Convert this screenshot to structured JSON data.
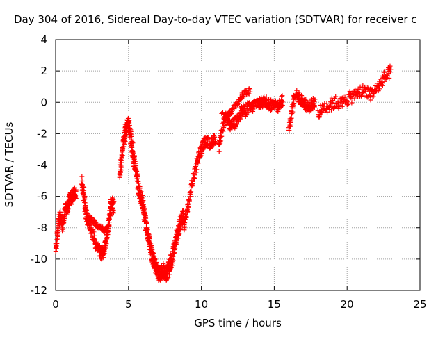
{
  "chart_data": {
    "type": "scatter",
    "title": "Day 304 of 2016, Sidereal Day-to-day VTEC variation (SDTVAR) for receiver c",
    "xlabel": "GPS time / hours",
    "ylabel": "SDTVAR / TECUs",
    "xlim": [
      0,
      25
    ],
    "ylim": [
      -12,
      4
    ],
    "x_ticks": [
      0,
      5,
      10,
      15,
      20,
      25
    ],
    "y_ticks": [
      -12,
      -10,
      -8,
      -6,
      -4,
      -2,
      0,
      2,
      4
    ],
    "x_tick_labels": [
      "0",
      "5",
      "10",
      "15",
      "20",
      "25"
    ],
    "y_tick_labels": [
      "-12",
      "-10",
      "-8",
      "-6",
      "-4",
      "-2",
      "0",
      "2",
      "4"
    ],
    "grid": true,
    "marker": "plus",
    "series": [
      {
        "color": "#ff0000",
        "segments": [
          {
            "x": [
              0.0,
              0.1,
              0.2,
              0.3,
              0.4,
              0.5,
              0.6,
              0.7,
              0.8,
              0.9,
              1.0,
              1.1,
              1.2,
              1.3,
              1.4
            ],
            "y": [
              -9.5,
              -8.6,
              -7.8,
              -7.2,
              -7.6,
              -8.2,
              -7.3,
              -6.6,
              -6.9,
              -6.4,
              -6.0,
              -6.3,
              -5.9,
              -5.7,
              -5.9
            ],
            "spread": 0.6
          },
          {
            "x": [
              1.8,
              1.9,
              2.0,
              2.1,
              2.2,
              2.4,
              2.6,
              2.8,
              3.0,
              3.1,
              3.2,
              3.3,
              3.4,
              3.5,
              3.6,
              3.7,
              3.8,
              3.9,
              4.0
            ],
            "y": [
              -5.0,
              -5.6,
              -6.4,
              -7.2,
              -7.6,
              -8.0,
              -8.6,
              -9.2,
              -9.5,
              -9.6,
              -9.7,
              -9.5,
              -9.2,
              -8.5,
              -8.0,
              -7.2,
              -6.6,
              -6.4,
              -6.8
            ],
            "spread": 0.8
          },
          {
            "x": [
              2.2,
              2.5,
              2.8,
              3.1,
              3.4,
              3.7
            ],
            "y": [
              -7.3,
              -7.5,
              -7.8,
              -8.0,
              -8.2,
              -7.9
            ],
            "spread": 0.3
          },
          {
            "x": [
              4.4,
              4.5,
              4.6,
              4.7,
              4.8,
              4.9,
              5.0,
              5.1,
              5.2,
              5.3,
              5.4,
              5.5,
              5.6,
              5.7,
              5.8,
              5.9,
              6.0,
              6.1,
              6.2,
              6.3,
              6.4,
              6.5,
              6.6,
              6.7,
              6.8,
              6.9,
              7.0,
              7.1,
              7.2,
              7.3,
              7.4,
              7.5,
              7.6,
              7.7,
              7.8,
              7.9,
              8.0,
              8.1,
              8.2,
              8.3,
              8.4,
              8.5,
              8.6,
              8.7,
              8.8
            ],
            "y": [
              -4.6,
              -3.8,
              -3.0,
              -2.4,
              -1.8,
              -1.5,
              -1.4,
              -1.9,
              -2.5,
              -3.2,
              -3.8,
              -4.4,
              -5.0,
              -5.5,
              -5.9,
              -6.2,
              -6.6,
              -7.2,
              -7.8,
              -8.3,
              -8.8,
              -9.3,
              -9.7,
              -10.0,
              -10.3,
              -10.6,
              -10.8,
              -11.0,
              -10.9,
              -10.8,
              -10.7,
              -10.9,
              -11.0,
              -10.8,
              -10.5,
              -10.2,
              -10.0,
              -9.5,
              -9.0,
              -8.6,
              -8.2,
              -7.9,
              -7.6,
              -7.4,
              -7.2
            ],
            "spread": 0.9
          },
          {
            "x": [
              8.8,
              9.0,
              9.2,
              9.4,
              9.6,
              9.8,
              10.0,
              10.2,
              10.4,
              10.6,
              10.8,
              11.0
            ],
            "y": [
              -8.0,
              -7.0,
              -6.0,
              -5.0,
              -4.2,
              -3.5,
              -3.0,
              -2.6,
              -2.5,
              -2.7,
              -2.4,
              -2.4
            ],
            "spread": 0.7
          },
          {
            "x": [
              11.2,
              11.4,
              11.6,
              11.8,
              12.0,
              12.2,
              12.4,
              12.6,
              12.8,
              13.0,
              13.2,
              13.4,
              13.6,
              13.8,
              14.0,
              14.2,
              14.4,
              14.6,
              14.8,
              15.0,
              15.2,
              15.4,
              15.6
            ],
            "y": [
              -2.8,
              -2.0,
              -1.2,
              -1.0,
              -1.6,
              -1.4,
              -1.2,
              -0.8,
              -0.5,
              -0.6,
              -0.3,
              -0.4,
              -0.2,
              0.0,
              -0.1,
              0.0,
              0.1,
              -0.1,
              -0.2,
              0.0,
              -0.3,
              -0.1,
              0.2
            ],
            "spread": 0.7
          },
          {
            "x": [
              11.4,
              11.8,
              12.2,
              12.6,
              13.0,
              13.4
            ],
            "y": [
              -0.8,
              -0.9,
              -0.3,
              0.2,
              0.6,
              0.8
            ],
            "spread": 0.4
          },
          {
            "x": [
              16.0,
              16.2,
              16.4,
              16.6,
              16.8,
              17.0,
              17.2,
              17.4,
              17.6,
              17.8
            ],
            "y": [
              -1.8,
              -0.6,
              0.5,
              0.4,
              0.2,
              0.0,
              -0.2,
              -0.3,
              -0.1,
              0.0
            ],
            "spread": 0.7
          },
          {
            "x": [
              18.0,
              18.4,
              18.8,
              19.2,
              19.6,
              20.0,
              20.4,
              20.8,
              21.2,
              21.6,
              22.0,
              22.4,
              22.8,
              23.0
            ],
            "y": [
              -0.8,
              -0.3,
              -0.2,
              0.0,
              -0.1,
              0.2,
              0.4,
              0.6,
              0.8,
              0.5,
              0.8,
              1.4,
              1.8,
              2.0
            ],
            "spread": 0.8
          }
        ]
      }
    ]
  }
}
